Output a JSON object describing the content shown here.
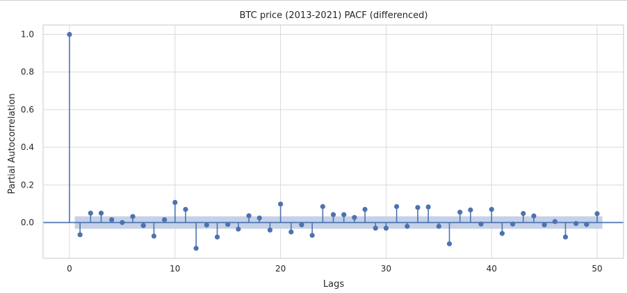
{
  "chart_data": {
    "type": "scatter",
    "subtype": "stem",
    "title": "BTC price (2013-2021) PACF (differenced)",
    "xlabel": "Lags",
    "ylabel": "Partial Autocorrelation",
    "xlim": [
      -2.5,
      52.5
    ],
    "ylim": [
      -0.19,
      1.05
    ],
    "xticks": [
      0,
      10,
      20,
      30,
      40,
      50
    ],
    "yticks": [
      0.0,
      0.2,
      0.4,
      0.6,
      0.8,
      1.0
    ],
    "xtick_labels": [
      "0",
      "10",
      "20",
      "30",
      "40",
      "50"
    ],
    "ytick_labels": [
      "0.0",
      "0.2",
      "0.4",
      "0.6",
      "0.8",
      "1.0"
    ],
    "grid": true,
    "colors": {
      "series": "#4c72b0",
      "confidence_band": "#c5d1e8",
      "zero_line": "#4c72b0"
    },
    "confidence_interval": [
      -0.033,
      0.033
    ],
    "series": [
      {
        "x": [
          0,
          1,
          2,
          3,
          4,
          5,
          6,
          7,
          8,
          9,
          10,
          11,
          12,
          13,
          14,
          15,
          16,
          17,
          18,
          19,
          20,
          21,
          22,
          23,
          24,
          25,
          26,
          27,
          28,
          29,
          30,
          31,
          32,
          33,
          34,
          35,
          36,
          37,
          38,
          39,
          40,
          41,
          42,
          43,
          44,
          45,
          46,
          47,
          48,
          49,
          50
        ],
        "values": [
          1.0,
          -0.065,
          0.05,
          0.05,
          0.015,
          0.0,
          0.032,
          -0.016,
          -0.072,
          0.015,
          0.107,
          0.07,
          -0.137,
          -0.013,
          -0.077,
          -0.01,
          -0.035,
          0.036,
          0.024,
          -0.04,
          0.098,
          -0.05,
          -0.012,
          -0.068,
          0.085,
          0.042,
          0.042,
          0.027,
          0.07,
          -0.03,
          -0.03,
          0.085,
          -0.02,
          0.08,
          0.083,
          -0.02,
          -0.113,
          0.055,
          0.067,
          -0.008,
          0.07,
          -0.058,
          -0.008,
          0.048,
          0.035,
          -0.012,
          0.005,
          -0.077,
          -0.005,
          -0.01,
          0.047
        ]
      }
    ]
  }
}
